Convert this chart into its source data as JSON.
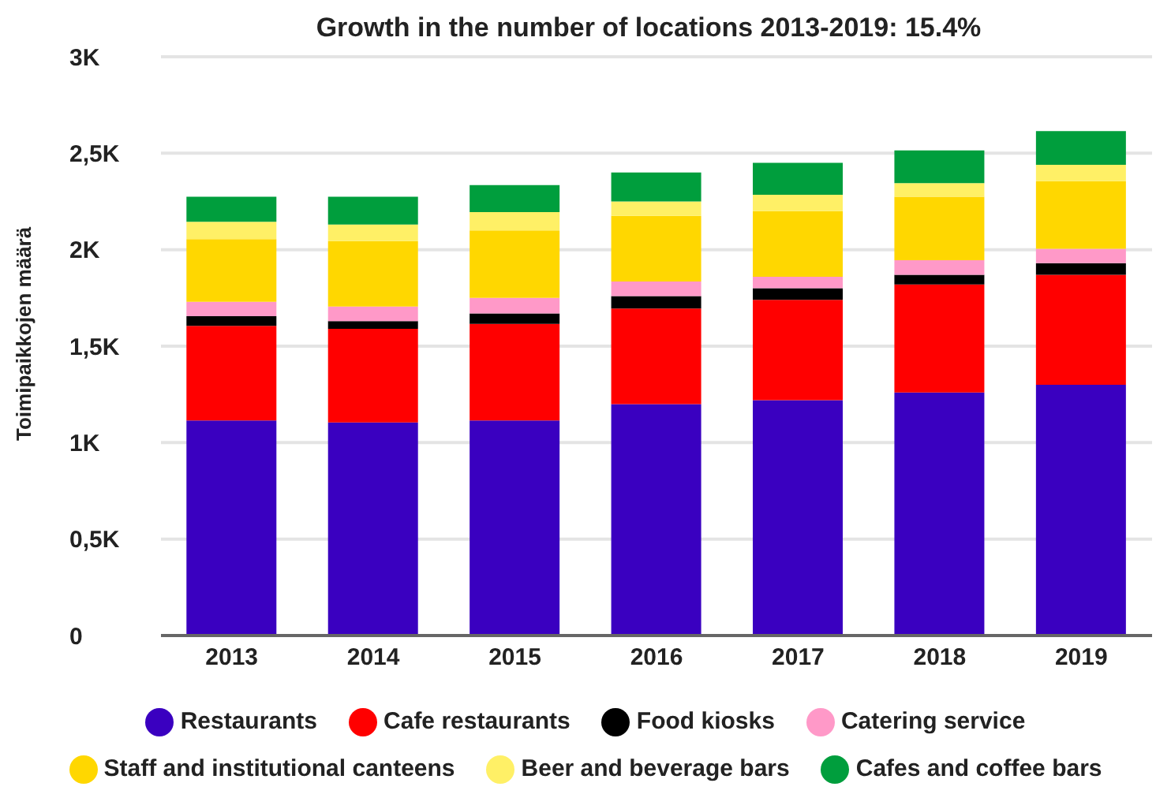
{
  "chart_data": {
    "type": "bar",
    "title": "Growth in the number of locations 2013-2019: 15.4%",
    "ylabel": "Toimipaikkojen määrä",
    "categories": [
      "2013",
      "2014",
      "2015",
      "2016",
      "2017",
      "2018",
      "2019"
    ],
    "stacked": true,
    "series": [
      {
        "name": "Restaurants",
        "color": "#3a00c0",
        "values": [
          1115,
          1105,
          1115,
          1200,
          1220,
          1260,
          1300
        ]
      },
      {
        "name": "Cafe restaurants",
        "color": "#ff0000",
        "values": [
          490,
          485,
          500,
          495,
          520,
          560,
          570
        ]
      },
      {
        "name": "Food kiosks",
        "color": "#000000",
        "values": [
          50,
          40,
          55,
          65,
          60,
          50,
          60
        ]
      },
      {
        "name": "Catering service",
        "color": "#ff99c8",
        "values": [
          75,
          75,
          80,
          75,
          60,
          75,
          75
        ]
      },
      {
        "name": "Staff and institutional canteens",
        "color": "#ffd700",
        "values": [
          325,
          340,
          350,
          340,
          340,
          330,
          350
        ]
      },
      {
        "name": "Beer and beverage bars",
        "color": "#fff066",
        "values": [
          90,
          85,
          95,
          75,
          85,
          70,
          85
        ]
      },
      {
        "name": "Cafes and coffee bars",
        "color": "#009e3d",
        "values": [
          130,
          145,
          140,
          150,
          165,
          170,
          175
        ]
      }
    ],
    "ylim": [
      0,
      3000
    ],
    "yticks": [
      0,
      {
        "value": 500,
        "label": "0,5K"
      },
      {
        "value": 1000,
        "label": "1K"
      },
      {
        "value": 1500,
        "label": "1,5K"
      },
      {
        "value": 2000,
        "label": "2K"
      },
      {
        "value": 2500,
        "label": "2,5K"
      },
      {
        "value": 3000,
        "label": "3K"
      }
    ],
    "grid": "y",
    "legend": "bottom"
  }
}
